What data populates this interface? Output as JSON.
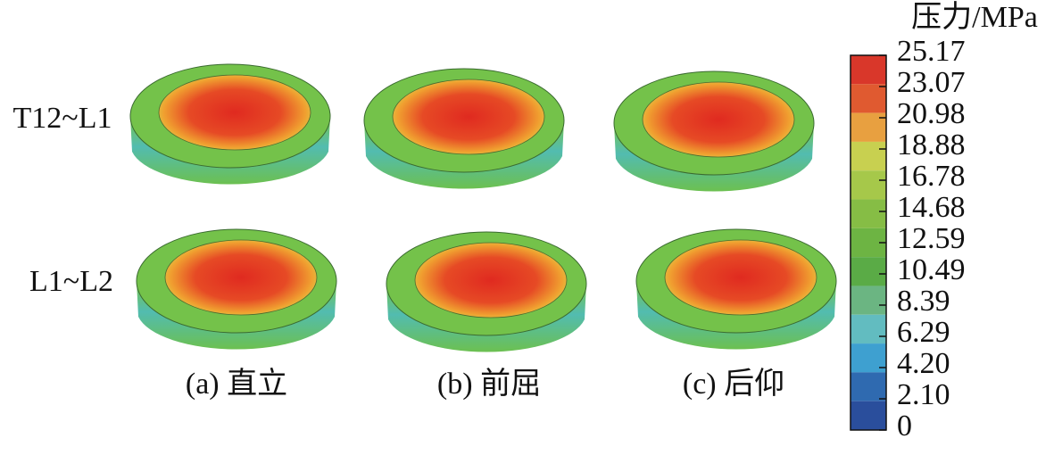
{
  "row_labels": [
    "T12~L1",
    "L1~L2"
  ],
  "column_labels": [
    "(a) 直立",
    "(b) 前屈",
    "(c) 后仰"
  ],
  "colorbar": {
    "title": "压力/MPa",
    "labels": [
      "25.17",
      "23.07",
      "20.98",
      "18.88",
      "16.78",
      "14.68",
      "12.59",
      "10.49",
      "8.39",
      "6.29",
      "4.20",
      "2.10",
      "0"
    ],
    "colors": [
      "#d9372a",
      "#e05a30",
      "#e8a040",
      "#c8d050",
      "#a6c84a",
      "#86bd45",
      "#6db443",
      "#5aab46",
      "#6bb582",
      "#62bcc0",
      "#3ea0d0",
      "#2f6ab0",
      "#2a4e9c"
    ]
  }
}
